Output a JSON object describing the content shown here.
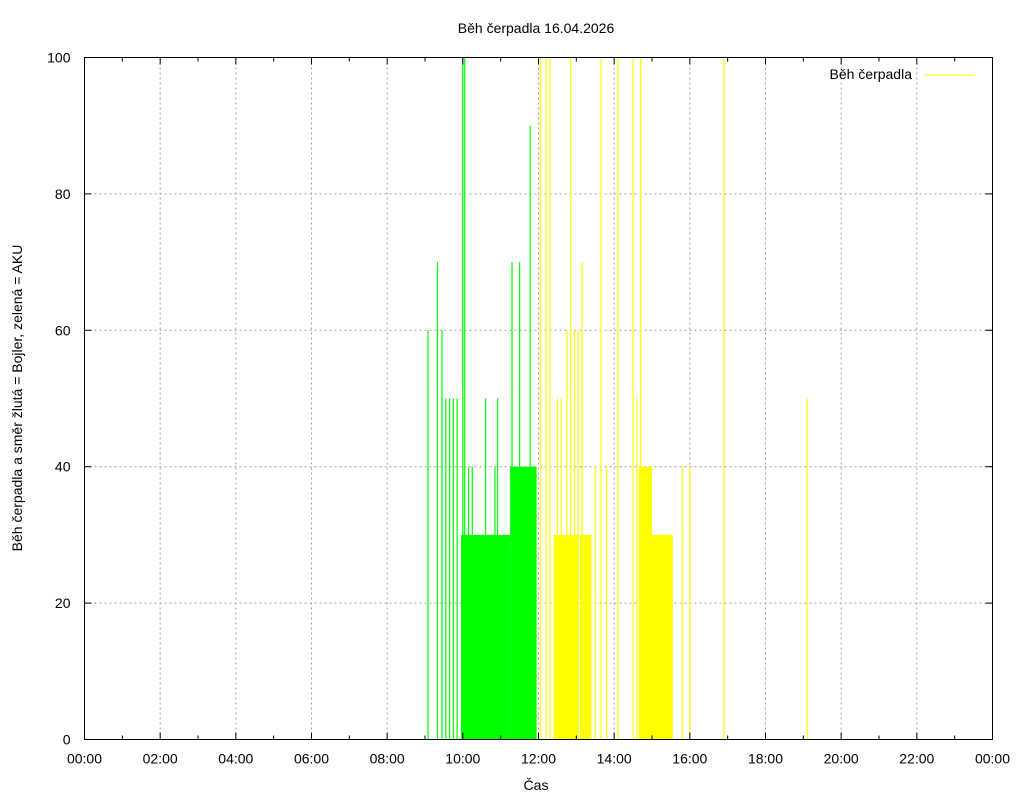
{
  "chart_data": {
    "type": "bar",
    "title": "Běh čerpadla 16.04.2026",
    "xlabel": "Čas",
    "ylabel": "Běh čerpadla a směr žlutá = Bojler, zelená = AKU",
    "xlim": [
      0,
      24
    ],
    "ylim": [
      0,
      100
    ],
    "x_ticks": [
      "00:00",
      "02:00",
      "04:00",
      "06:00",
      "08:00",
      "10:00",
      "12:00",
      "14:00",
      "16:00",
      "18:00",
      "20:00",
      "22:00",
      "00:00"
    ],
    "y_ticks": [
      "0",
      "20",
      "40",
      "60",
      "80",
      "100"
    ],
    "grid": true,
    "legend": {
      "position": "top-right",
      "label": "Běh čerpadla",
      "color": "#ffff00"
    },
    "colors": {
      "aku": "#00ff00",
      "bojler": "#ffff00"
    },
    "series": [
      {
        "name": "AKU",
        "color": "#00ff00",
        "spikes": [
          [
            9.08,
            60
          ],
          [
            9.33,
            70
          ],
          [
            9.45,
            60
          ],
          [
            9.55,
            50
          ],
          [
            9.65,
            50
          ],
          [
            9.75,
            50
          ],
          [
            9.85,
            50
          ],
          [
            10.0,
            100
          ],
          [
            10.05,
            100
          ],
          [
            10.15,
            40
          ],
          [
            10.25,
            40
          ],
          [
            10.6,
            50
          ],
          [
            10.85,
            40
          ],
          [
            10.92,
            50
          ],
          [
            11.3,
            70
          ],
          [
            11.5,
            70
          ],
          [
            11.72,
            40
          ],
          [
            11.78,
            90
          ]
        ],
        "blocks": [
          [
            9.95,
            11.25,
            30
          ],
          [
            11.25,
            11.95,
            40
          ]
        ]
      },
      {
        "name": "Bojler",
        "color": "#ffff00",
        "spikes": [
          [
            12.05,
            100
          ],
          [
            12.2,
            100
          ],
          [
            12.3,
            100
          ],
          [
            12.5,
            50
          ],
          [
            12.6,
            50
          ],
          [
            12.75,
            60
          ],
          [
            12.85,
            100
          ],
          [
            12.95,
            60
          ],
          [
            13.05,
            60
          ],
          [
            13.15,
            70
          ],
          [
            13.5,
            40
          ],
          [
            13.65,
            100
          ],
          [
            13.8,
            40
          ],
          [
            14.1,
            100
          ],
          [
            14.5,
            100
          ],
          [
            14.6,
            50
          ],
          [
            14.7,
            100
          ],
          [
            15.8,
            40
          ],
          [
            16.0,
            40
          ],
          [
            16.9,
            100
          ],
          [
            19.1,
            50
          ]
        ],
        "blocks": [
          [
            12.4,
            13.05,
            30
          ],
          [
            13.1,
            13.4,
            30
          ],
          [
            14.65,
            15.0,
            40
          ],
          [
            15.0,
            15.55,
            30
          ]
        ]
      }
    ]
  }
}
